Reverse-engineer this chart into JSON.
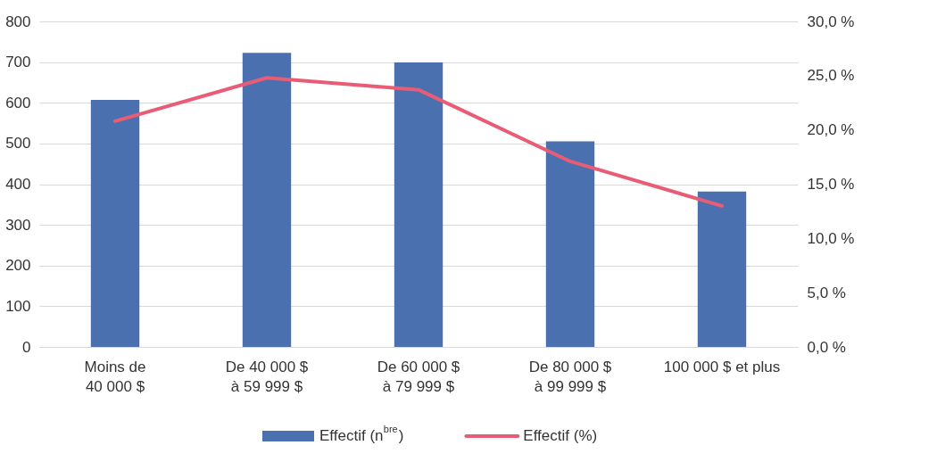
{
  "chart_data": {
    "type": "bar",
    "categories": [
      "Moins de 40 000 $",
      "De 40 000 $ à 59 999 $",
      "De 60 000 $ à 79 999 $",
      "De 80 000 $ à 99 999 $",
      "100 000 $ et plus"
    ],
    "series": [
      {
        "name": "Effectif (n$^{bre}$)",
        "color": "#4a70b0",
        "values": [
          607,
          723,
          699,
          505,
          382
        ]
      },
      {
        "name": "Effectif (%)",
        "type": "line",
        "axis": "y2",
        "color": "#e85d75",
        "values": [
          20.8,
          24.8,
          23.7,
          17.1,
          13.0
        ]
      }
    ],
    "ylim": [
      0,
      800
    ],
    "yticks": [
      0,
      100,
      200,
      300,
      400,
      500,
      600,
      700,
      800
    ],
    "y2lim": [
      0,
      30
    ],
    "y2ticks": [
      {
        "value": 0,
        "label": "0,0 %"
      },
      {
        "value": 5,
        "label": "5,0 %"
      },
      {
        "value": 10,
        "label": "10,0 %"
      },
      {
        "value": 15,
        "label": "15,0 %"
      },
      {
        "value": 20,
        "label": "20,0 %"
      },
      {
        "value": 25,
        "label": "25,0 %"
      },
      {
        "value": 30,
        "label": "30,0 %"
      }
    ],
    "grid": "y",
    "legend": "bottom",
    "marker": "none",
    "line_style": "solid"
  }
}
